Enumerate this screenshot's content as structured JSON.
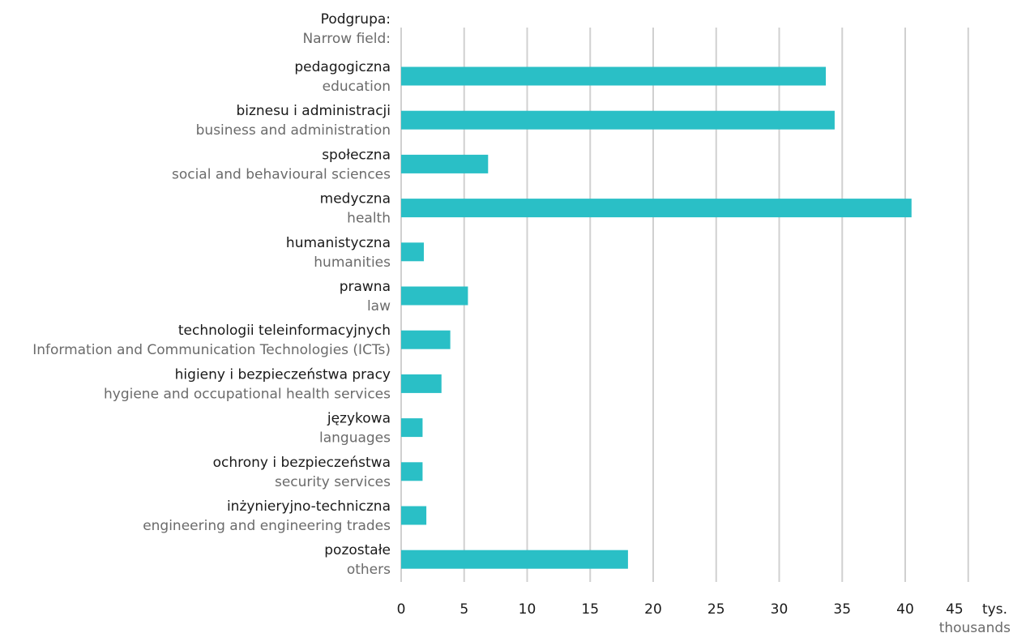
{
  "colors": {
    "bar": "#2abfc6",
    "grid": "#d0d0d0",
    "label_pl": "#1a1a1a",
    "label_en": "#6b6b6b"
  },
  "header": {
    "title_pl": "Podgrupa:",
    "title_en": "Narrow field:"
  },
  "chart_data": {
    "type": "bar",
    "orientation": "horizontal",
    "categories": [
      {
        "pl": "pedagogiczna",
        "en": "education"
      },
      {
        "pl": "biznesu i administracji",
        "en": "business and administration"
      },
      {
        "pl": "społeczna",
        "en": "social and behavioural sciences"
      },
      {
        "pl": "medyczna",
        "en": "health"
      },
      {
        "pl": "humanistyczna",
        "en": "humanities"
      },
      {
        "pl": "prawna",
        "en": "law"
      },
      {
        "pl": "technologii teleinformacyjnych",
        "en": "Information and Communication Technologies (ICTs)"
      },
      {
        "pl": "higieny i bezpieczeństwa pracy",
        "en": "hygiene and occupational health services"
      },
      {
        "pl": "językowa",
        "en": "languages"
      },
      {
        "pl": "ochrony i bezpieczeństwa",
        "en": "security services"
      },
      {
        "pl": "inżynieryjno-techniczna",
        "en": "engineering and engineering trades"
      },
      {
        "pl": "pozostałe",
        "en": "others"
      }
    ],
    "values": [
      33.7,
      34.4,
      6.9,
      40.5,
      1.8,
      5.3,
      3.9,
      3.2,
      1.7,
      1.7,
      2.0,
      18.0
    ],
    "xlim": [
      0,
      45
    ],
    "ticks": [
      "0",
      "5",
      "10",
      "15",
      "20",
      "25",
      "30",
      "35",
      "40",
      "45"
    ],
    "unit_pl": "tys.",
    "unit_en": "thousands",
    "grid": true,
    "legend": "none"
  }
}
